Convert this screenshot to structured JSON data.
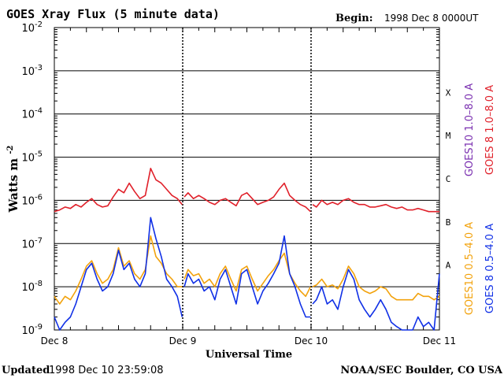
{
  "header": {
    "title": "GOES Xray Flux (5 minute data)",
    "begin_label": "Begin:",
    "begin_value": "1998 Dec 8 0000UT"
  },
  "footer": {
    "updated_label": "Updated",
    "updated_value": "1998 Dec 10 23:59:08",
    "credit": "NOAA/SEC Boulder, CO USA"
  },
  "chart_data": {
    "type": "line",
    "title": "GOES Xray Flux (5 minute data)",
    "xlabel": "Universal Time",
    "ylabel": "Watts m",
    "ylabel_sup": "-2",
    "yscale": "log",
    "ylim": [
      1e-09,
      0.01
    ],
    "xlim": [
      0,
      72
    ],
    "x_units": "hours since 1998 Dec 8 00:00 UT",
    "x_ticks": [
      {
        "x": 0,
        "label": "Dec 8"
      },
      {
        "x": 24,
        "label": "Dec 9"
      },
      {
        "x": 48,
        "label": "Dec 10"
      },
      {
        "x": 72,
        "label": "Dec 11"
      }
    ],
    "y_ticks": [
      {
        "exp": -9,
        "label": "10",
        "sup": "-9"
      },
      {
        "exp": -8,
        "label": "10",
        "sup": "-8"
      },
      {
        "exp": -7,
        "label": "10",
        "sup": "-7"
      },
      {
        "exp": -6,
        "label": "10",
        "sup": "-6"
      },
      {
        "exp": -5,
        "label": "10",
        "sup": "-5"
      },
      {
        "exp": -4,
        "label": "10",
        "sup": "-4"
      },
      {
        "exp": -3,
        "label": "10",
        "sup": "-3"
      },
      {
        "exp": -2,
        "label": "10",
        "sup": "-2"
      }
    ],
    "flare_classes": [
      {
        "label": "A",
        "exp": -7.5
      },
      {
        "label": "B",
        "exp": -6.5
      },
      {
        "label": "C",
        "exp": -5.5
      },
      {
        "label": "M",
        "exp": -4.5
      },
      {
        "label": "X",
        "exp": -3.5
      }
    ],
    "legend": [
      {
        "text": "GOES10 1.0–8.0 A",
        "color": "#7a2fb0"
      },
      {
        "text": "GOES 8 1.0–8.0 A",
        "color": "#e0202a"
      },
      {
        "text": "GOES10 0.5–4.0 A",
        "color": "#f2a20c"
      },
      {
        "text": "GOES 8 0.5–4.0 A",
        "color": "#1030e6"
      }
    ],
    "series": [
      {
        "name": "GOES 8 1.0–8.0 A",
        "color": "#e0202a",
        "x": [
          0,
          1,
          2,
          3,
          4,
          5,
          6,
          7,
          8,
          9,
          10,
          11,
          12,
          13,
          14,
          15,
          16,
          17,
          18,
          19,
          20,
          21,
          22,
          23,
          23.9,
          24.3,
          25,
          26,
          27,
          28,
          29,
          30,
          31,
          32,
          33,
          34,
          35,
          36,
          37,
          38,
          39,
          40,
          41,
          42,
          43,
          44,
          45,
          46,
          47,
          47.9,
          48.3,
          49,
          50,
          51,
          52,
          53,
          54,
          55,
          56,
          57,
          58,
          59,
          60,
          61,
          62,
          63,
          64,
          65,
          66,
          67,
          68,
          69,
          70,
          71,
          72
        ],
        "y": [
          5.5e-07,
          6e-07,
          7e-07,
          6.5e-07,
          8e-07,
          7e-07,
          9e-07,
          1.1e-06,
          8e-07,
          7e-07,
          7.5e-07,
          1.2e-06,
          1.8e-06,
          1.5e-06,
          2.5e-06,
          1.6e-06,
          1.1e-06,
          1.3e-06,
          5.5e-06,
          3e-06,
          2.5e-06,
          1.8e-06,
          1.3e-06,
          1.1e-06,
          8e-07,
          1.2e-06,
          1.5e-06,
          1.1e-06,
          1.3e-06,
          1.1e-06,
          9e-07,
          8e-07,
          1e-06,
          1.1e-06,
          9e-07,
          7.5e-07,
          1.3e-06,
          1.5e-06,
          1.1e-06,
          8e-07,
          9e-07,
          1e-06,
          1.2e-06,
          1.8e-06,
          2.5e-06,
          1.3e-06,
          1e-06,
          8e-07,
          7e-07,
          5.5e-07,
          8e-07,
          7e-07,
          1e-06,
          8e-07,
          9e-07,
          8e-07,
          1e-06,
          1.1e-06,
          9e-07,
          8e-07,
          8e-07,
          7e-07,
          7e-07,
          7.5e-07,
          8e-07,
          7e-07,
          6.5e-07,
          7e-07,
          6e-07,
          6e-07,
          6.5e-07,
          6e-07,
          5.5e-07,
          5.5e-07,
          5.5e-07
        ]
      },
      {
        "name": "GOES10 0.5–4.0 A",
        "color": "#f2a20c",
        "x": [
          0,
          1,
          2,
          3,
          4,
          5,
          6,
          7,
          8,
          9,
          10,
          11,
          12,
          13,
          14,
          15,
          16,
          17,
          18,
          19,
          20,
          21,
          22,
          23,
          23.9,
          24.3,
          25,
          26,
          27,
          28,
          29,
          30,
          31,
          32,
          33,
          34,
          35,
          36,
          37,
          38,
          39,
          40,
          41,
          42,
          43,
          44,
          45,
          46,
          47,
          47.9,
          48.3,
          49,
          50,
          51,
          52,
          53,
          54,
          55,
          56,
          57,
          58,
          59,
          60,
          61,
          62,
          63,
          64,
          65,
          66,
          67,
          68,
          69,
          70,
          71,
          72
        ],
        "y": [
          6e-09,
          4e-09,
          6e-09,
          5e-09,
          8e-09,
          1.5e-08,
          3e-08,
          4e-08,
          2e-08,
          1.2e-08,
          1.5e-08,
          2.5e-08,
          8e-08,
          3e-08,
          4e-08,
          2e-08,
          1.5e-08,
          2.5e-08,
          1.5e-07,
          5e-08,
          3.5e-08,
          2e-08,
          1.5e-08,
          1e-08,
          1e-08,
          1.5e-08,
          2.5e-08,
          1.8e-08,
          2e-08,
          1.2e-08,
          1.5e-08,
          1e-08,
          2e-08,
          3e-08,
          1.5e-08,
          8e-09,
          2.5e-08,
          3e-08,
          1.5e-08,
          8e-09,
          1.2e-08,
          1.8e-08,
          2.5e-08,
          4e-08,
          6e-08,
          2e-08,
          1.2e-08,
          8e-09,
          6e-09,
          1e-08,
          1e-08,
          1.1e-08,
          1.5e-08,
          1e-08,
          1.1e-08,
          9e-09,
          1.5e-08,
          3e-08,
          2e-08,
          1e-08,
          8e-09,
          7e-09,
          8e-09,
          1e-08,
          9e-09,
          6e-09,
          5e-09,
          5e-09,
          5e-09,
          5e-09,
          7e-09,
          6e-09,
          6e-09,
          5e-09,
          6e-09
        ]
      },
      {
        "name": "GOES 8 0.5–4.0 A",
        "color": "#1030e6",
        "x": [
          0,
          1,
          2,
          3,
          4,
          5,
          6,
          7,
          8,
          9,
          10,
          11,
          12,
          13,
          14,
          15,
          16,
          17,
          18,
          19,
          20,
          21,
          22,
          23,
          23.9,
          24.3,
          25,
          26,
          27,
          28,
          29,
          30,
          31,
          32,
          33,
          34,
          35,
          36,
          37,
          38,
          39,
          40,
          41,
          42,
          43,
          44,
          45,
          46,
          47,
          47.9,
          48.3,
          49,
          50,
          51,
          52,
          53,
          54,
          55,
          56,
          57,
          58,
          59,
          60,
          61,
          62,
          63,
          64,
          65,
          66,
          67,
          68,
          69,
          70,
          71,
          72
        ],
        "y": [
          2e-09,
          1e-09,
          1.5e-09,
          2e-09,
          4e-09,
          1e-08,
          2.5e-08,
          3.5e-08,
          1.5e-08,
          8e-09,
          1e-08,
          2e-08,
          7e-08,
          2.5e-08,
          3.5e-08,
          1.5e-08,
          1e-08,
          2e-08,
          4e-07,
          1.3e-07,
          5e-08,
          1.5e-08,
          1e-08,
          6e-09,
          2e-09,
          1e-08,
          2e-08,
          1.2e-08,
          1.5e-08,
          8e-09,
          1e-08,
          5e-09,
          1.5e-08,
          2.5e-08,
          1e-08,
          4e-09,
          2e-08,
          2.5e-08,
          1e-08,
          4e-09,
          8e-09,
          1.2e-08,
          2e-08,
          3.5e-08,
          1.5e-07,
          2e-08,
          1e-08,
          4e-09,
          2e-09,
          2e-09,
          4e-09,
          5e-09,
          1e-08,
          4e-09,
          5e-09,
          3e-09,
          1e-08,
          2.5e-08,
          1.5e-08,
          5e-09,
          3e-09,
          2e-09,
          3e-09,
          5e-09,
          3e-09,
          1.5e-09,
          1.2e-09,
          1e-09,
          1e-09,
          1e-09,
          2e-09,
          1.2e-09,
          1.5e-09,
          1e-09,
          2e-08
        ]
      }
    ]
  }
}
